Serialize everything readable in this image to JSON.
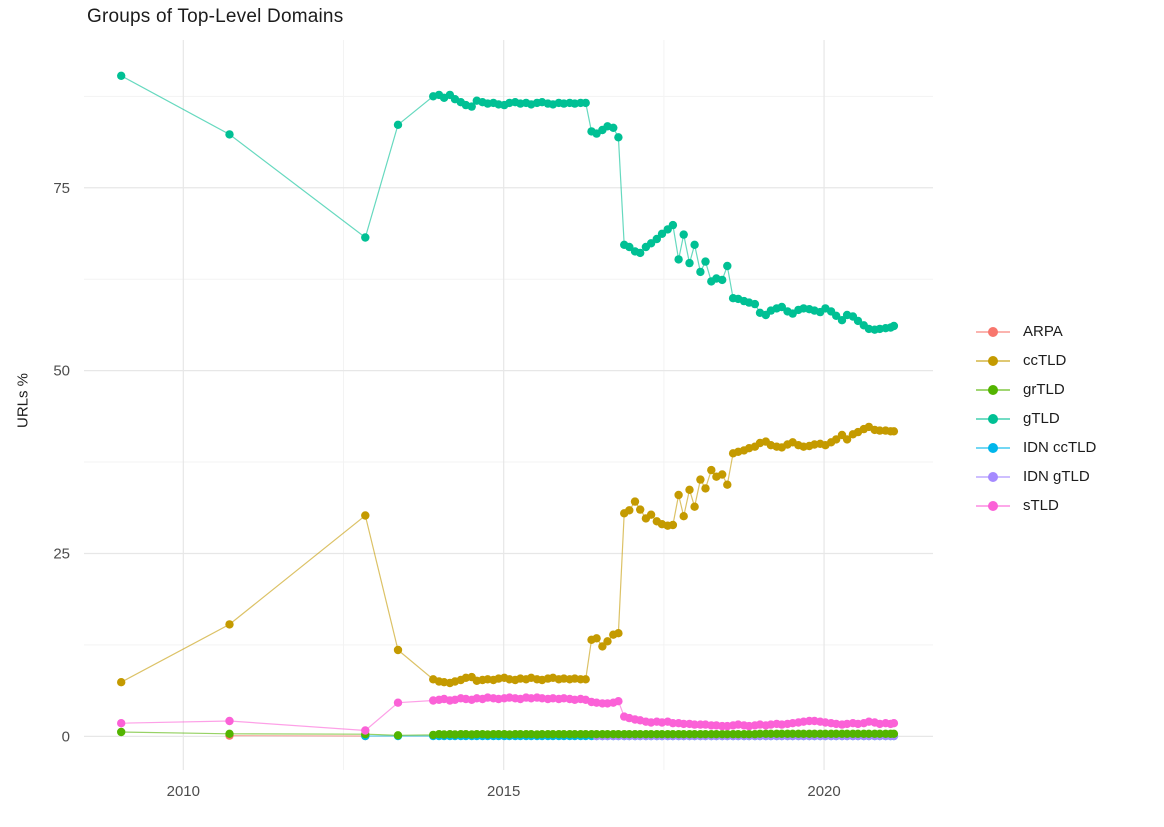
{
  "chart_data": {
    "type": "line",
    "title": "Groups of Top-Level Domains",
    "xlabel": "",
    "ylabel": "URLs %",
    "grid": "on",
    "legend_position": "right",
    "axes": {
      "x_domain": [
        2008.45,
        2021.7
      ],
      "y_domain": [
        -4.6,
        95.2
      ],
      "x_ticks": [
        2010,
        2015,
        2020
      ],
      "y_ticks": [
        0,
        25,
        50,
        75
      ],
      "x_minor": [
        2012.5,
        2017.5
      ],
      "y_minor": [
        12.5,
        37.5,
        62.5,
        87.5
      ],
      "x_tick_labels": [
        "2010",
        "2015",
        "2020"
      ],
      "y_tick_labels": [
        "0",
        "25",
        "50",
        "75"
      ]
    },
    "x_dense": [
      2013.9,
      2013.99,
      2014.07,
      2014.16,
      2014.24,
      2014.33,
      2014.41,
      2014.5,
      2014.58,
      2014.67,
      2014.75,
      2014.84,
      2014.92,
      2015.01,
      2015.09,
      2015.18,
      2015.26,
      2015.35,
      2015.43,
      2015.52,
      2015.6,
      2015.69,
      2015.77,
      2015.86,
      2015.94,
      2016.03,
      2016.11,
      2016.2,
      2016.28,
      2016.37,
      2016.45,
      2016.54,
      2016.62,
      2016.71,
      2016.79,
      2016.88,
      2016.96,
      2017.05,
      2017.13,
      2017.22,
      2017.3,
      2017.39,
      2017.47,
      2017.56,
      2017.64,
      2017.73,
      2017.81,
      2017.9,
      2017.98,
      2018.07,
      2018.15,
      2018.24,
      2018.32,
      2018.41,
      2018.49,
      2018.58,
      2018.66,
      2018.75,
      2018.83,
      2018.92,
      2019.0,
      2019.09,
      2019.17,
      2019.26,
      2019.34,
      2019.43,
      2019.51,
      2019.6,
      2019.68,
      2019.77,
      2019.85,
      2019.94,
      2020.02,
      2020.11,
      2020.19,
      2020.28,
      2020.36,
      2020.45,
      2020.53,
      2020.62,
      2020.7,
      2020.79,
      2020.87,
      2020.96,
      2021.04,
      2021.09
    ],
    "render_order": [
      "ARPA",
      "IDN ccTLD",
      "IDN gTLD",
      "grTLD",
      "sTLD",
      "ccTLD",
      "gTLD"
    ],
    "series": [
      {
        "name": "ARPA",
        "color": "#F8766D",
        "sparse": [
          [
            2010.72,
            0.1
          ],
          [
            2012.84,
            0.05
          ]
        ],
        "y_dense": []
      },
      {
        "name": "ccTLD",
        "color": "#C49A00",
        "sparse": [
          [
            2009.03,
            7.4
          ],
          [
            2010.72,
            15.3
          ],
          [
            2012.84,
            30.2
          ],
          [
            2013.35,
            11.8
          ]
        ],
        "y_dense": [
          7.8,
          7.5,
          7.4,
          7.3,
          7.5,
          7.7,
          8.0,
          8.1,
          7.6,
          7.7,
          7.8,
          7.7,
          7.9,
          8.0,
          7.8,
          7.7,
          7.9,
          7.8,
          8.0,
          7.8,
          7.7,
          7.9,
          8.0,
          7.8,
          7.9,
          7.8,
          7.9,
          7.8,
          7.8,
          13.2,
          13.4,
          12.3,
          13.0,
          13.9,
          14.1,
          30.5,
          30.9,
          32.1,
          31.0,
          29.8,
          30.3,
          29.4,
          29.0,
          28.8,
          28.9,
          33.0,
          30.1,
          33.7,
          31.4,
          35.1,
          33.9,
          36.4,
          35.5,
          35.8,
          34.4,
          38.7,
          38.9,
          39.1,
          39.4,
          39.6,
          40.1,
          40.3,
          39.8,
          39.6,
          39.5,
          39.9,
          40.2,
          39.8,
          39.6,
          39.7,
          39.9,
          40.0,
          39.8,
          40.2,
          40.6,
          41.2,
          40.6,
          41.3,
          41.6,
          42.0,
          42.3,
          41.9,
          41.8,
          41.8,
          41.7,
          41.7
        ]
      },
      {
        "name": "grTLD",
        "color": "#53B400",
        "sparse": [
          [
            2009.03,
            0.6
          ],
          [
            2010.72,
            0.35
          ],
          [
            2012.84,
            0.3
          ],
          [
            2013.35,
            0.15
          ]
        ],
        "y_dense": [
          0.2,
          0.3,
          0.25,
          0.3,
          0.25,
          0.3,
          0.3,
          0.25,
          0.3,
          0.3,
          0.25,
          0.3,
          0.3,
          0.3,
          0.25,
          0.3,
          0.3,
          0.3,
          0.3,
          0.25,
          0.3,
          0.3,
          0.3,
          0.3,
          0.3,
          0.3,
          0.3,
          0.3,
          0.3,
          0.3,
          0.3,
          0.3,
          0.3,
          0.3,
          0.3,
          0.3,
          0.3,
          0.3,
          0.3,
          0.3,
          0.3,
          0.3,
          0.3,
          0.3,
          0.3,
          0.3,
          0.3,
          0.3,
          0.3,
          0.3,
          0.3,
          0.3,
          0.3,
          0.3,
          0.3,
          0.3,
          0.3,
          0.3,
          0.3,
          0.3,
          0.35,
          0.35,
          0.35,
          0.35,
          0.35,
          0.35,
          0.35,
          0.35,
          0.35,
          0.35,
          0.35,
          0.35,
          0.35,
          0.35,
          0.35,
          0.35,
          0.35,
          0.35,
          0.35,
          0.35,
          0.35,
          0.35,
          0.35,
          0.35,
          0.35,
          0.35
        ]
      },
      {
        "name": "gTLD",
        "color": "#00C094",
        "sparse": [
          [
            2009.03,
            90.3
          ],
          [
            2010.72,
            82.3
          ],
          [
            2012.84,
            68.2
          ],
          [
            2013.35,
            83.6
          ]
        ],
        "y_dense": [
          87.5,
          87.7,
          87.3,
          87.7,
          87.1,
          86.7,
          86.3,
          86.1,
          86.9,
          86.7,
          86.5,
          86.6,
          86.4,
          86.3,
          86.6,
          86.7,
          86.5,
          86.6,
          86.4,
          86.6,
          86.7,
          86.5,
          86.4,
          86.6,
          86.5,
          86.6,
          86.5,
          86.6,
          86.6,
          82.7,
          82.4,
          82.9,
          83.4,
          83.2,
          81.9,
          67.2,
          66.9,
          66.3,
          66.1,
          66.9,
          67.4,
          68.0,
          68.7,
          69.3,
          69.9,
          65.2,
          68.6,
          64.7,
          67.2,
          63.5,
          64.9,
          62.2,
          62.6,
          62.4,
          64.3,
          59.9,
          59.8,
          59.5,
          59.3,
          59.1,
          57.9,
          57.6,
          58.2,
          58.5,
          58.7,
          58.1,
          57.8,
          58.3,
          58.5,
          58.4,
          58.2,
          58.0,
          58.5,
          58.1,
          57.5,
          56.9,
          57.6,
          57.4,
          56.8,
          56.2,
          55.7,
          55.6,
          55.7,
          55.8,
          55.9,
          56.1
        ]
      },
      {
        "name": "IDN ccTLD",
        "color": "#00B6EB",
        "sparse": [
          [
            2012.84,
            0.05
          ],
          [
            2013.35,
            0.05
          ]
        ],
        "y_dense": [
          0.05,
          0.05,
          0.05,
          0.05,
          0.05,
          0.05,
          0.05,
          0.05,
          0.05,
          0.05,
          0.05,
          0.05,
          0.05,
          0.05,
          0.05,
          0.05,
          0.05,
          0.05,
          0.05,
          0.05,
          0.05,
          0.05,
          0.05,
          0.05,
          0.05,
          0.05,
          0.05,
          0.05,
          0.05,
          0.05,
          0.05,
          0.05,
          0.05,
          0.05,
          0.05,
          0.05,
          0.05,
          0.05,
          0.05,
          0.05,
          0.05,
          0.05,
          0.05,
          0.05,
          0.05,
          0.05,
          0.05,
          0.05,
          0.05,
          0.05,
          0.05,
          0.05,
          0.05,
          0.05,
          0.05,
          0.05,
          0.05,
          0.05,
          0.05,
          0.05,
          0.05,
          0.05,
          0.05,
          0.05,
          0.05,
          0.05,
          0.05,
          0.05,
          0.05,
          0.05,
          0.05,
          0.05,
          0.05,
          0.05,
          0.05,
          0.05,
          0.05,
          0.05,
          0.05,
          0.05,
          0.05,
          0.05,
          0.05,
          0.05,
          0.05,
          0.05
        ]
      },
      {
        "name": "IDN gTLD",
        "color": "#A58AFF",
        "sparse": [],
        "y_dense": [
          null,
          null,
          null,
          null,
          null,
          null,
          null,
          null,
          null,
          null,
          null,
          null,
          null,
          null,
          null,
          null,
          null,
          null,
          null,
          null,
          null,
          null,
          null,
          null,
          null,
          null,
          null,
          null,
          null,
          null,
          0.05,
          0.05,
          0.05,
          0.05,
          0.05,
          0.05,
          0.05,
          0.05,
          0.05,
          0.05,
          0.05,
          0.05,
          0.05,
          0.05,
          0.05,
          0.05,
          0.05,
          0.05,
          0.05,
          0.05,
          0.05,
          0.05,
          0.05,
          0.05,
          0.05,
          0.05,
          0.05,
          0.05,
          0.05,
          0.05,
          0.05,
          0.05,
          0.05,
          0.05,
          0.05,
          0.05,
          0.05,
          0.05,
          0.05,
          0.05,
          0.05,
          0.05,
          0.05,
          0.05,
          0.05,
          0.05,
          0.05,
          0.05,
          0.05,
          0.05,
          0.05,
          0.05,
          0.05,
          0.05,
          0.05,
          0.05
        ]
      },
      {
        "name": "sTLD",
        "color": "#FB61D7",
        "sparse": [
          [
            2009.03,
            1.8
          ],
          [
            2010.72,
            2.1
          ],
          [
            2012.84,
            0.8
          ],
          [
            2013.35,
            4.6
          ]
        ],
        "y_dense": [
          4.9,
          5.0,
          5.1,
          4.9,
          5.0,
          5.2,
          5.1,
          5.0,
          5.2,
          5.1,
          5.3,
          5.2,
          5.1,
          5.2,
          5.3,
          5.2,
          5.1,
          5.3,
          5.2,
          5.3,
          5.2,
          5.1,
          5.2,
          5.1,
          5.2,
          5.1,
          5.0,
          5.1,
          5.0,
          4.7,
          4.6,
          4.5,
          4.5,
          4.6,
          4.8,
          2.7,
          2.5,
          2.3,
          2.2,
          2.0,
          1.9,
          2.0,
          1.9,
          2.0,
          1.8,
          1.8,
          1.7,
          1.7,
          1.6,
          1.6,
          1.6,
          1.5,
          1.5,
          1.4,
          1.4,
          1.5,
          1.6,
          1.5,
          1.4,
          1.5,
          1.6,
          1.5,
          1.6,
          1.7,
          1.6,
          1.7,
          1.8,
          1.9,
          2.0,
          2.1,
          2.1,
          2.0,
          1.9,
          1.8,
          1.7,
          1.6,
          1.7,
          1.8,
          1.7,
          1.8,
          2.0,
          1.9,
          1.7,
          1.8,
          1.7,
          1.8
        ]
      }
    ],
    "style": {
      "grid_major_color": "#E7E7E7",
      "grid_minor_color": "#F3F3F3",
      "tick_label_color": "#4d4d4d",
      "title_color": "#1c1c1c",
      "point_radius": 4.2,
      "line_width": 1.2,
      "line_opacity": 0.6
    }
  }
}
